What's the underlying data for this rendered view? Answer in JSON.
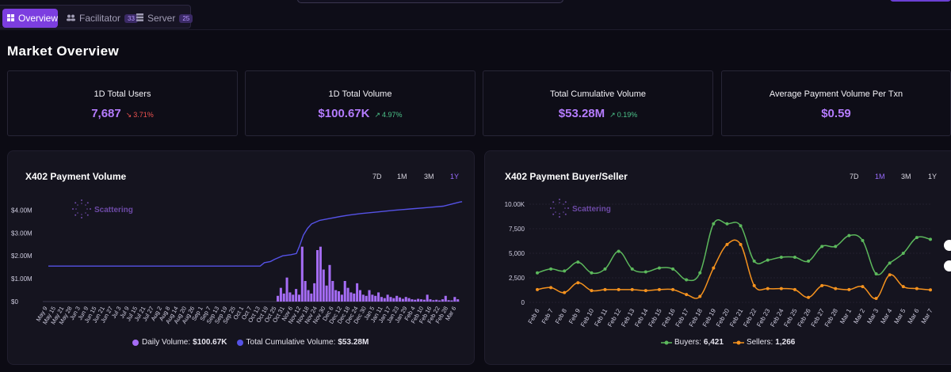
{
  "nav": {
    "tabs": [
      {
        "label": "Overview",
        "icon": "grid-icon",
        "active": true
      },
      {
        "label": "Facilitator",
        "icon": "users-icon",
        "badge": "33"
      },
      {
        "label": "Server",
        "icon": "server-icon",
        "badge": "25"
      }
    ]
  },
  "page": {
    "title": "Market Overview"
  },
  "stats": [
    {
      "label": "1D Total Users",
      "value": "7,687",
      "change": "3.71%",
      "direction": "down"
    },
    {
      "label": "1D Total Volume",
      "value": "$100.67K",
      "change": "4.97%",
      "direction": "up"
    },
    {
      "label": "Total Cumulative Volume",
      "value": "$53.28M",
      "change": "0.19%",
      "direction": "up"
    },
    {
      "label": "Average Payment Volume Per Txn",
      "value": "$0.59"
    }
  ],
  "colors": {
    "accent": "#7c3ee0",
    "value": "#b57cff",
    "down": "#ef5350",
    "up": "#4cc38a",
    "buyers": "#5cb85c",
    "sellers": "#f5921e",
    "daily": "#a56cf5",
    "cumulative": "#5552e6"
  },
  "charts": {
    "volume": {
      "title": "X402 Payment Volume",
      "ranges": [
        "7D",
        "1M",
        "3M",
        "1Y"
      ],
      "active_range": "1Y",
      "watermark": "Scattering",
      "legend": [
        {
          "label": "Daily Volume:",
          "value": "$100.67K"
        },
        {
          "label": "Total Cumulative Volume:",
          "value": "$53.28M"
        }
      ]
    },
    "buyer_seller": {
      "title": "X402 Payment Buyer/Seller",
      "ranges": [
        "7D",
        "1M",
        "3M",
        "1Y"
      ],
      "active_range": "1M",
      "watermark": "Scattering",
      "legend": [
        {
          "label": "Buyers:",
          "value": "6,421"
        },
        {
          "label": "Sellers:",
          "value": "1,266"
        }
      ]
    }
  },
  "chart_data": [
    {
      "type": "bar",
      "title": "X402 Payment Volume",
      "y_ticks": [
        "$0",
        "$1.00M",
        "$2.00M",
        "$3.00M",
        "$4.00M"
      ],
      "ylim": [
        0,
        4500000
      ],
      "x_ticks": [
        "May 9",
        "May 15",
        "May 21",
        "May 28",
        "Jun 3",
        "Jun 9",
        "Jun 15",
        "Jun 21",
        "Jun 27",
        "Jul 3",
        "Jul 9",
        "Jul 15",
        "Jul 21",
        "Jul 27",
        "Aug 2",
        "Aug 8",
        "Aug 14",
        "Aug 20",
        "Aug 26",
        "Sep 1",
        "Sep 7",
        "Sep 13",
        "Sep 19",
        "Sep 25",
        "Oct 1",
        "Oct 7",
        "Oct 13",
        "Oct 19",
        "Oct 25",
        "Oct 31",
        "Nov 6",
        "Nov 12",
        "Nov 18",
        "Nov 24",
        "Nov 30",
        "Dec 6",
        "Dec 12",
        "Dec 18",
        "Dec 24",
        "Dec 30",
        "Jan 5",
        "Jan 11",
        "Jan 17",
        "Jan 23",
        "Jan 29",
        "Feb 4",
        "Feb 10",
        "Feb 16",
        "Feb 22",
        "Feb 28",
        "Mar 6"
      ],
      "series": [
        {
          "name": "Daily Volume",
          "kind": "bar",
          "values": [
            0.25,
            0.6,
            0.35,
            1.05,
            0.4,
            0.3,
            0.55,
            0.3,
            2.4,
            0.9,
            0.5,
            0.35,
            0.8,
            2.25,
            2.4,
            1.4,
            0.7,
            1.6,
            0.9,
            0.5,
            0.45,
            0.3,
            0.9,
            0.6,
            0.4,
            0.35,
            0.8,
            0.5,
            0.3,
            0.25,
            0.5,
            0.3,
            0.25,
            0.4,
            0.2,
            0.15,
            0.3,
            0.2,
            0.15,
            0.25,
            0.18,
            0.12,
            0.2,
            0.15,
            0.1,
            0.08,
            0.12,
            0.1,
            0.08,
            0.3,
            0.1,
            0.06,
            0.08,
            0.05,
            0.1,
            0.25,
            0.06,
            0.05,
            0.2,
            0.1
          ]
        },
        {
          "name": "Total Cumulative Volume",
          "kind": "line",
          "points": [
            [
              0,
              1.55
            ],
            [
              51.5,
              1.55
            ],
            [
              52.5,
              1.7
            ],
            [
              54,
              1.75
            ],
            [
              55,
              1.85
            ],
            [
              57,
              2.0
            ],
            [
              59,
              2.05
            ],
            [
              60.3,
              2.1
            ],
            [
              61,
              2.4
            ],
            [
              62,
              2.9
            ],
            [
              63,
              3.2
            ],
            [
              64,
              3.4
            ],
            [
              66,
              3.55
            ],
            [
              68,
              3.62
            ],
            [
              71,
              3.72
            ],
            [
              73,
              3.78
            ],
            [
              76,
              3.85
            ],
            [
              80,
              3.92
            ],
            [
              84,
              3.99
            ],
            [
              88,
              4.05
            ],
            [
              92,
              4.11
            ],
            [
              96,
              4.17
            ],
            [
              100,
              4.35
            ],
            [
              100.6,
              4.37
            ]
          ]
        }
      ]
    },
    {
      "type": "line",
      "title": "X402 Payment Buyer/Seller",
      "y_ticks": [
        "0",
        "2,500",
        "5,000",
        "7,500",
        "10.00K"
      ],
      "ylim": [
        0,
        10000
      ],
      "categories": [
        "Feb 6",
        "Feb 7",
        "Feb 8",
        "Feb 9",
        "Feb 10",
        "Feb 11",
        "Feb 12",
        "Feb 13",
        "Feb 14",
        "Feb 15",
        "Feb 16",
        "Feb 17",
        "Feb 18",
        "Feb 19",
        "Feb 20",
        "Feb 21",
        "Feb 22",
        "Feb 23",
        "Feb 24",
        "Feb 25",
        "Feb 26",
        "Feb 27",
        "Feb 28",
        "Mar 1",
        "Mar 2",
        "Mar 3",
        "Mar 4",
        "Mar 5",
        "Mar 6",
        "Mar 7"
      ],
      "series": [
        {
          "name": "Buyers",
          "values": [
            3000,
            3400,
            3200,
            4100,
            3000,
            3400,
            5200,
            3400,
            3100,
            3500,
            3400,
            2300,
            3000,
            8000,
            8000,
            7800,
            4200,
            4300,
            4600,
            4600,
            4200,
            5700,
            5700,
            6800,
            6300,
            2900,
            4000,
            5000,
            6600,
            6421
          ]
        },
        {
          "name": "Sellers",
          "values": [
            1300,
            1500,
            1000,
            2000,
            1200,
            1300,
            1300,
            1300,
            1200,
            1300,
            1300,
            800,
            600,
            3500,
            5900,
            5900,
            1700,
            1400,
            1400,
            1300,
            500,
            1700,
            1400,
            1300,
            1600,
            400,
            2800,
            1600,
            1400,
            1266
          ]
        }
      ]
    }
  ]
}
